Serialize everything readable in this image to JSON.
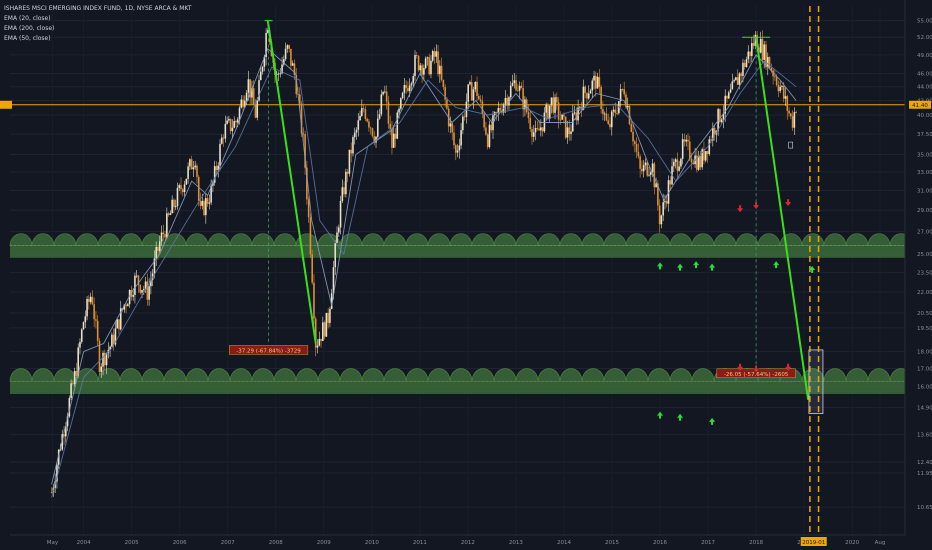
{
  "chart_data": {
    "type": "candlestick",
    "title": "ISHARES MSCI EMERGING INDEX FUND, 1D, NYSE ARCA & MKT",
    "indicators": [
      "EMA (20, close)",
      "EMA (200, close)",
      "EMA (50, close)"
    ],
    "y_axis": {
      "scale": "log",
      "ticks": [
        "10.65",
        "11.95",
        "12.40",
        "13.60",
        "14.90",
        "16.00",
        "17.00",
        "18.00",
        "19.50",
        "20.50",
        "22.00",
        "23.50",
        "25.00",
        "27.00",
        "29.00",
        "31.00",
        "33.00",
        "35.00",
        "37.50",
        "40.00",
        "42.00",
        "44.00",
        "46.00",
        "49.00",
        "52.00",
        "55.00"
      ],
      "ylim": [
        10.3,
        57
      ]
    },
    "x_axis": {
      "ticks": [
        "May",
        "2004",
        "2005",
        "2006",
        "2007",
        "2008",
        "2009",
        "2010",
        "2011",
        "2012",
        "2013",
        "2014",
        "2015",
        "2016",
        "2017",
        "2018",
        "2019",
        "2020",
        "Aug"
      ]
    },
    "price_label": "41.40",
    "date_label": "2019-01",
    "price_line": 41.4,
    "support_zones": [
      [
        24.7,
        26.8
      ],
      [
        15.6,
        17.0
      ]
    ],
    "measure_labels": [
      "-37.29 (-67.84%) -3729",
      "-26.05 (-57.64%) -2605"
    ],
    "series": [
      {
        "name": "Price",
        "points": [
          [
            "2003-05",
            11.2
          ],
          [
            "2003-07",
            13.0
          ],
          [
            "2003-09",
            14.8
          ],
          [
            "2003-11",
            16.8
          ],
          [
            "2004-01",
            20.0
          ],
          [
            "2004-03",
            22.0
          ],
          [
            "2004-05",
            17.3
          ],
          [
            "2004-08",
            18.5
          ],
          [
            "2004-11",
            21.0
          ],
          [
            "2005-02",
            23.0
          ],
          [
            "2005-05",
            22.0
          ],
          [
            "2005-08",
            26.0
          ],
          [
            "2005-11",
            29.0
          ],
          [
            "2006-02",
            32.0
          ],
          [
            "2006-05",
            35.0
          ],
          [
            "2006-06",
            28.5
          ],
          [
            "2006-09",
            31.0
          ],
          [
            "2006-12",
            38.0
          ],
          [
            "2007-03",
            39.0
          ],
          [
            "2007-06",
            45.0
          ],
          [
            "2007-08",
            40.0
          ],
          [
            "2007-11",
            55.0
          ],
          [
            "2008-01",
            45.0
          ],
          [
            "2008-04",
            50.0
          ],
          [
            "2008-06",
            45.0
          ],
          [
            "2008-08",
            36.0
          ],
          [
            "2008-10",
            24.0
          ],
          [
            "2008-11",
            18.5
          ],
          [
            "2009-02",
            20.0
          ],
          [
            "2009-05",
            29.0
          ],
          [
            "2009-08",
            36.0
          ],
          [
            "2009-11",
            41.0
          ],
          [
            "2010-02",
            37.0
          ],
          [
            "2010-04",
            44.0
          ],
          [
            "2010-06",
            36.0
          ],
          [
            "2010-09",
            43.0
          ],
          [
            "2010-12",
            48.0
          ],
          [
            "2011-03",
            47.0
          ],
          [
            "2011-05",
            49.0
          ],
          [
            "2011-08",
            40.0
          ],
          [
            "2011-10",
            35.0
          ],
          [
            "2012-01",
            43.0
          ],
          [
            "2012-03",
            44.0
          ],
          [
            "2012-06",
            37.0
          ],
          [
            "2012-09",
            41.0
          ],
          [
            "2013-01",
            45.0
          ],
          [
            "2013-06",
            37.0
          ],
          [
            "2013-10",
            42.0
          ],
          [
            "2014-02",
            37.5
          ],
          [
            "2014-06",
            43.0
          ],
          [
            "2014-09",
            45.0
          ],
          [
            "2014-12",
            38.0
          ],
          [
            "2015-04",
            44.0
          ],
          [
            "2015-08",
            33.0
          ],
          [
            "2015-11",
            34.0
          ],
          [
            "2016-01",
            28.0
          ],
          [
            "2016-04",
            33.0
          ],
          [
            "2016-07",
            36.0
          ],
          [
            "2016-11",
            34.0
          ],
          [
            "2017-03",
            39.0
          ],
          [
            "2017-06",
            42.0
          ],
          [
            "2017-09",
            46.0
          ],
          [
            "2018-01",
            52.0
          ],
          [
            "2018-04",
            48.0
          ],
          [
            "2018-07",
            44.0
          ],
          [
            "2018-10",
            39.0
          ],
          [
            "2018-11",
            41.4
          ]
        ]
      },
      {
        "name": "EMA (20, close)",
        "points": [
          [
            "2003-05",
            11.5
          ],
          [
            "2004-01",
            18.0
          ],
          [
            "2004-06",
            18.5
          ],
          [
            "2005-01",
            22.0
          ],
          [
            "2005-08",
            25.0
          ],
          [
            "2006-04",
            32.0
          ],
          [
            "2006-08",
            30.5
          ],
          [
            "2007-03",
            38.0
          ],
          [
            "2007-11",
            50.0
          ],
          [
            "2008-06",
            46.0
          ],
          [
            "2008-10",
            28.0
          ],
          [
            "2009-03",
            21.0
          ],
          [
            "2009-09",
            35.0
          ],
          [
            "2010-06",
            38.0
          ],
          [
            "2011-01",
            46.0
          ],
          [
            "2011-09",
            39.0
          ],
          [
            "2012-03",
            42.0
          ],
          [
            "2012-07",
            39.0
          ],
          [
            "2013-01",
            43.0
          ],
          [
            "2013-07",
            39.0
          ],
          [
            "2014-03",
            39.0
          ],
          [
            "2014-09",
            43.0
          ],
          [
            "2015-04",
            42.0
          ],
          [
            "2015-10",
            34.0
          ],
          [
            "2016-02",
            30.0
          ],
          [
            "2016-09",
            35.0
          ],
          [
            "2017-06",
            41.0
          ],
          [
            "2018-01",
            49.0
          ],
          [
            "2018-07",
            45.0
          ],
          [
            "2018-11",
            42.0
          ]
        ]
      },
      {
        "name": "EMA (50, close)",
        "points": [
          [
            "2003-05",
            11.0
          ],
          [
            "2004-01",
            16.5
          ],
          [
            "2004-08",
            18.2
          ],
          [
            "2005-06",
            23.0
          ],
          [
            "2006-06",
            30.0
          ],
          [
            "2007-03",
            36.0
          ],
          [
            "2007-12",
            47.0
          ],
          [
            "2008-07",
            45.0
          ],
          [
            "2008-12",
            28.0
          ],
          [
            "2009-06",
            25.0
          ],
          [
            "2009-12",
            36.0
          ],
          [
            "2010-08",
            39.0
          ],
          [
            "2011-03",
            45.0
          ],
          [
            "2011-10",
            41.0
          ],
          [
            "2012-06",
            40.0
          ],
          [
            "2013-03",
            41.0
          ],
          [
            "2013-09",
            39.5
          ],
          [
            "2014-06",
            41.0
          ],
          [
            "2015-02",
            41.5
          ],
          [
            "2015-10",
            37.0
          ],
          [
            "2016-05",
            32.0
          ],
          [
            "2017-01",
            36.0
          ],
          [
            "2017-09",
            43.0
          ],
          [
            "2018-03",
            48.0
          ],
          [
            "2018-11",
            44.0
          ]
        ]
      }
    ],
    "projection_lines": [
      {
        "from": [
          "2007-11",
          55.0
        ],
        "to": [
          "2008-11",
          18.5
        ]
      },
      {
        "from": [
          "2018-01",
          52.0
        ],
        "to": [
          "2019-02",
          15.3
        ]
      }
    ],
    "buy_arrows": [
      [
        "2016-01",
        24.0
      ],
      [
        "2016-06",
        23.9
      ],
      [
        "2016-10",
        24.1
      ],
      [
        "2017-02",
        23.9
      ],
      [
        "2018-06",
        24.1
      ],
      [
        "2019-03",
        23.7
      ],
      [
        "2016-01",
        14.5
      ],
      [
        "2016-06",
        14.4
      ],
      [
        "2017-02",
        14.2
      ]
    ],
    "sell_arrows": [
      [
        "2017-09",
        29.2
      ],
      [
        "2018-01",
        29.5
      ],
      [
        "2018-09",
        29.8
      ],
      [
        "2017-09",
        17.1
      ],
      [
        "2018-01",
        17.0
      ],
      [
        "2018-09",
        17.1
      ]
    ]
  }
}
